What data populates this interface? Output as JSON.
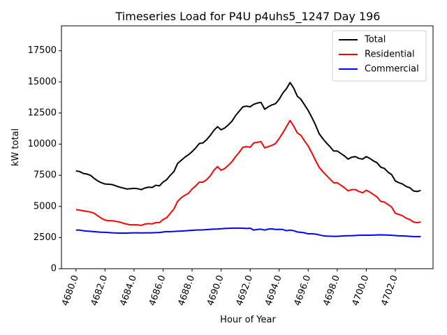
{
  "chart_data": {
    "type": "line",
    "title": "Timeseries Load for P4U p4uhs5_1247  Day 196",
    "xlabel": "Hour of Year",
    "ylabel": "kW total",
    "xlim": [
      4679.0,
      4704.6
    ],
    "ylim": [
      0,
      19500
    ],
    "xticks": [
      4680,
      4682,
      4684,
      4686,
      4688,
      4690,
      4692,
      4694,
      4696,
      4698,
      4700,
      4702
    ],
    "xtick_labels": [
      "4680.0",
      "4682.0",
      "4684.0",
      "4686.0",
      "4688.0",
      "4690.0",
      "4692.0",
      "4694.0",
      "4696.0",
      "4698.0",
      "4700.0",
      "4702.0"
    ],
    "yticks": [
      0,
      2500,
      5000,
      7500,
      10000,
      12500,
      15000,
      17500
    ],
    "ytick_labels": [
      "0",
      "2500",
      "5000",
      "7500",
      "10000",
      "12500",
      "15000",
      "17500"
    ],
    "grid": false,
    "legend_position": "top-right",
    "x": [
      4680.0,
      4680.25,
      4680.5,
      4680.75,
      4681.0,
      4681.25,
      4681.5,
      4681.75,
      4682.0,
      4682.25,
      4682.5,
      4682.75,
      4683.0,
      4683.25,
      4683.5,
      4683.75,
      4684.0,
      4684.25,
      4684.5,
      4684.75,
      4685.0,
      4685.25,
      4685.5,
      4685.75,
      4686.0,
      4686.25,
      4686.5,
      4686.75,
      4687.0,
      4687.25,
      4687.5,
      4687.75,
      4688.0,
      4688.25,
      4688.5,
      4688.75,
      4689.0,
      4689.25,
      4689.5,
      4689.75,
      4690.0,
      4690.25,
      4690.5,
      4690.75,
      4691.0,
      4691.25,
      4691.5,
      4691.75,
      4692.0,
      4692.25,
      4692.5,
      4692.75,
      4693.0,
      4693.25,
      4693.5,
      4693.75,
      4694.0,
      4694.25,
      4694.5,
      4694.75,
      4695.0,
      4695.25,
      4695.5,
      4695.75,
      4696.0,
      4696.25,
      4696.5,
      4696.75,
      4697.0,
      4697.25,
      4697.5,
      4697.75,
      4698.0,
      4698.25,
      4698.5,
      4698.75,
      4699.0,
      4699.25,
      4699.5,
      4699.75,
      4700.0,
      4700.25,
      4700.5,
      4700.75,
      4701.0,
      4701.25,
      4701.5,
      4701.75,
      4702.0,
      4702.25,
      4702.5,
      4702.75,
      4703.0,
      4703.25,
      4703.5,
      4703.75
    ],
    "series": [
      {
        "name": "Total",
        "color": "#000000",
        "values": [
          7850,
          7800,
          7650,
          7600,
          7500,
          7250,
          7050,
          6900,
          6800,
          6780,
          6750,
          6650,
          6550,
          6480,
          6400,
          6420,
          6450,
          6420,
          6350,
          6480,
          6550,
          6520,
          6700,
          6650,
          6950,
          7150,
          7500,
          7800,
          8450,
          8700,
          8950,
          9150,
          9400,
          9700,
          10050,
          10100,
          10350,
          10700,
          11100,
          11400,
          11150,
          11300,
          11550,
          11850,
          12300,
          12650,
          13000,
          13050,
          13000,
          13200,
          13300,
          13350,
          12800,
          13000,
          13150,
          13250,
          13600,
          14100,
          14450,
          14950,
          14500,
          13850,
          13600,
          13150,
          12700,
          12150,
          11550,
          10850,
          10450,
          10100,
          9800,
          9450,
          9450,
          9250,
          9050,
          8800,
          8950,
          9000,
          8850,
          8800,
          9000,
          8850,
          8650,
          8500,
          8150,
          8050,
          7750,
          7550,
          7050,
          6900,
          6800,
          6600,
          6500,
          6250,
          6200,
          6280
        ]
      },
      {
        "name": "Residential",
        "color": "#ff0000",
        "values": [
          4750,
          4700,
          4650,
          4600,
          4550,
          4450,
          4250,
          4050,
          3900,
          3850,
          3850,
          3800,
          3750,
          3650,
          3580,
          3520,
          3520,
          3520,
          3480,
          3580,
          3620,
          3600,
          3700,
          3700,
          3950,
          4100,
          4450,
          4800,
          5400,
          5700,
          5900,
          6050,
          6400,
          6650,
          6950,
          6950,
          7150,
          7450,
          7900,
          8200,
          7900,
          8050,
          8300,
          8600,
          9000,
          9350,
          9750,
          9800,
          9750,
          10100,
          10150,
          10200,
          9700,
          9800,
          9900,
          10050,
          10450,
          10900,
          11400,
          11900,
          11450,
          10900,
          10700,
          10250,
          9850,
          9300,
          8700,
          8150,
          7800,
          7500,
          7200,
          6900,
          6900,
          6700,
          6500,
          6250,
          6350,
          6350,
          6200,
          6100,
          6300,
          6150,
          5950,
          5750,
          5400,
          5350,
          5150,
          4950,
          4450,
          4350,
          4250,
          4050,
          3950,
          3750,
          3700,
          3750
        ]
      },
      {
        "name": "Commercial",
        "color": "#0000ff",
        "values": [
          3100,
          3100,
          3050,
          3020,
          3000,
          2980,
          2950,
          2930,
          2920,
          2900,
          2880,
          2870,
          2860,
          2860,
          2860,
          2870,
          2880,
          2880,
          2870,
          2880,
          2880,
          2880,
          2900,
          2900,
          2950,
          2980,
          2980,
          2990,
          3010,
          3020,
          3040,
          3060,
          3080,
          3100,
          3110,
          3120,
          3140,
          3160,
          3180,
          3190,
          3210,
          3230,
          3240,
          3250,
          3260,
          3260,
          3250,
          3230,
          3250,
          3100,
          3150,
          3170,
          3100,
          3180,
          3200,
          3150,
          3160,
          3150,
          3050,
          3100,
          3050,
          2950,
          2920,
          2880,
          2800,
          2800,
          2780,
          2720,
          2650,
          2620,
          2610,
          2600,
          2600,
          2620,
          2640,
          2650,
          2650,
          2670,
          2680,
          2690,
          2690,
          2690,
          2700,
          2710,
          2720,
          2710,
          2700,
          2680,
          2660,
          2640,
          2630,
          2620,
          2600,
          2580,
          2570,
          2580
        ]
      }
    ]
  }
}
